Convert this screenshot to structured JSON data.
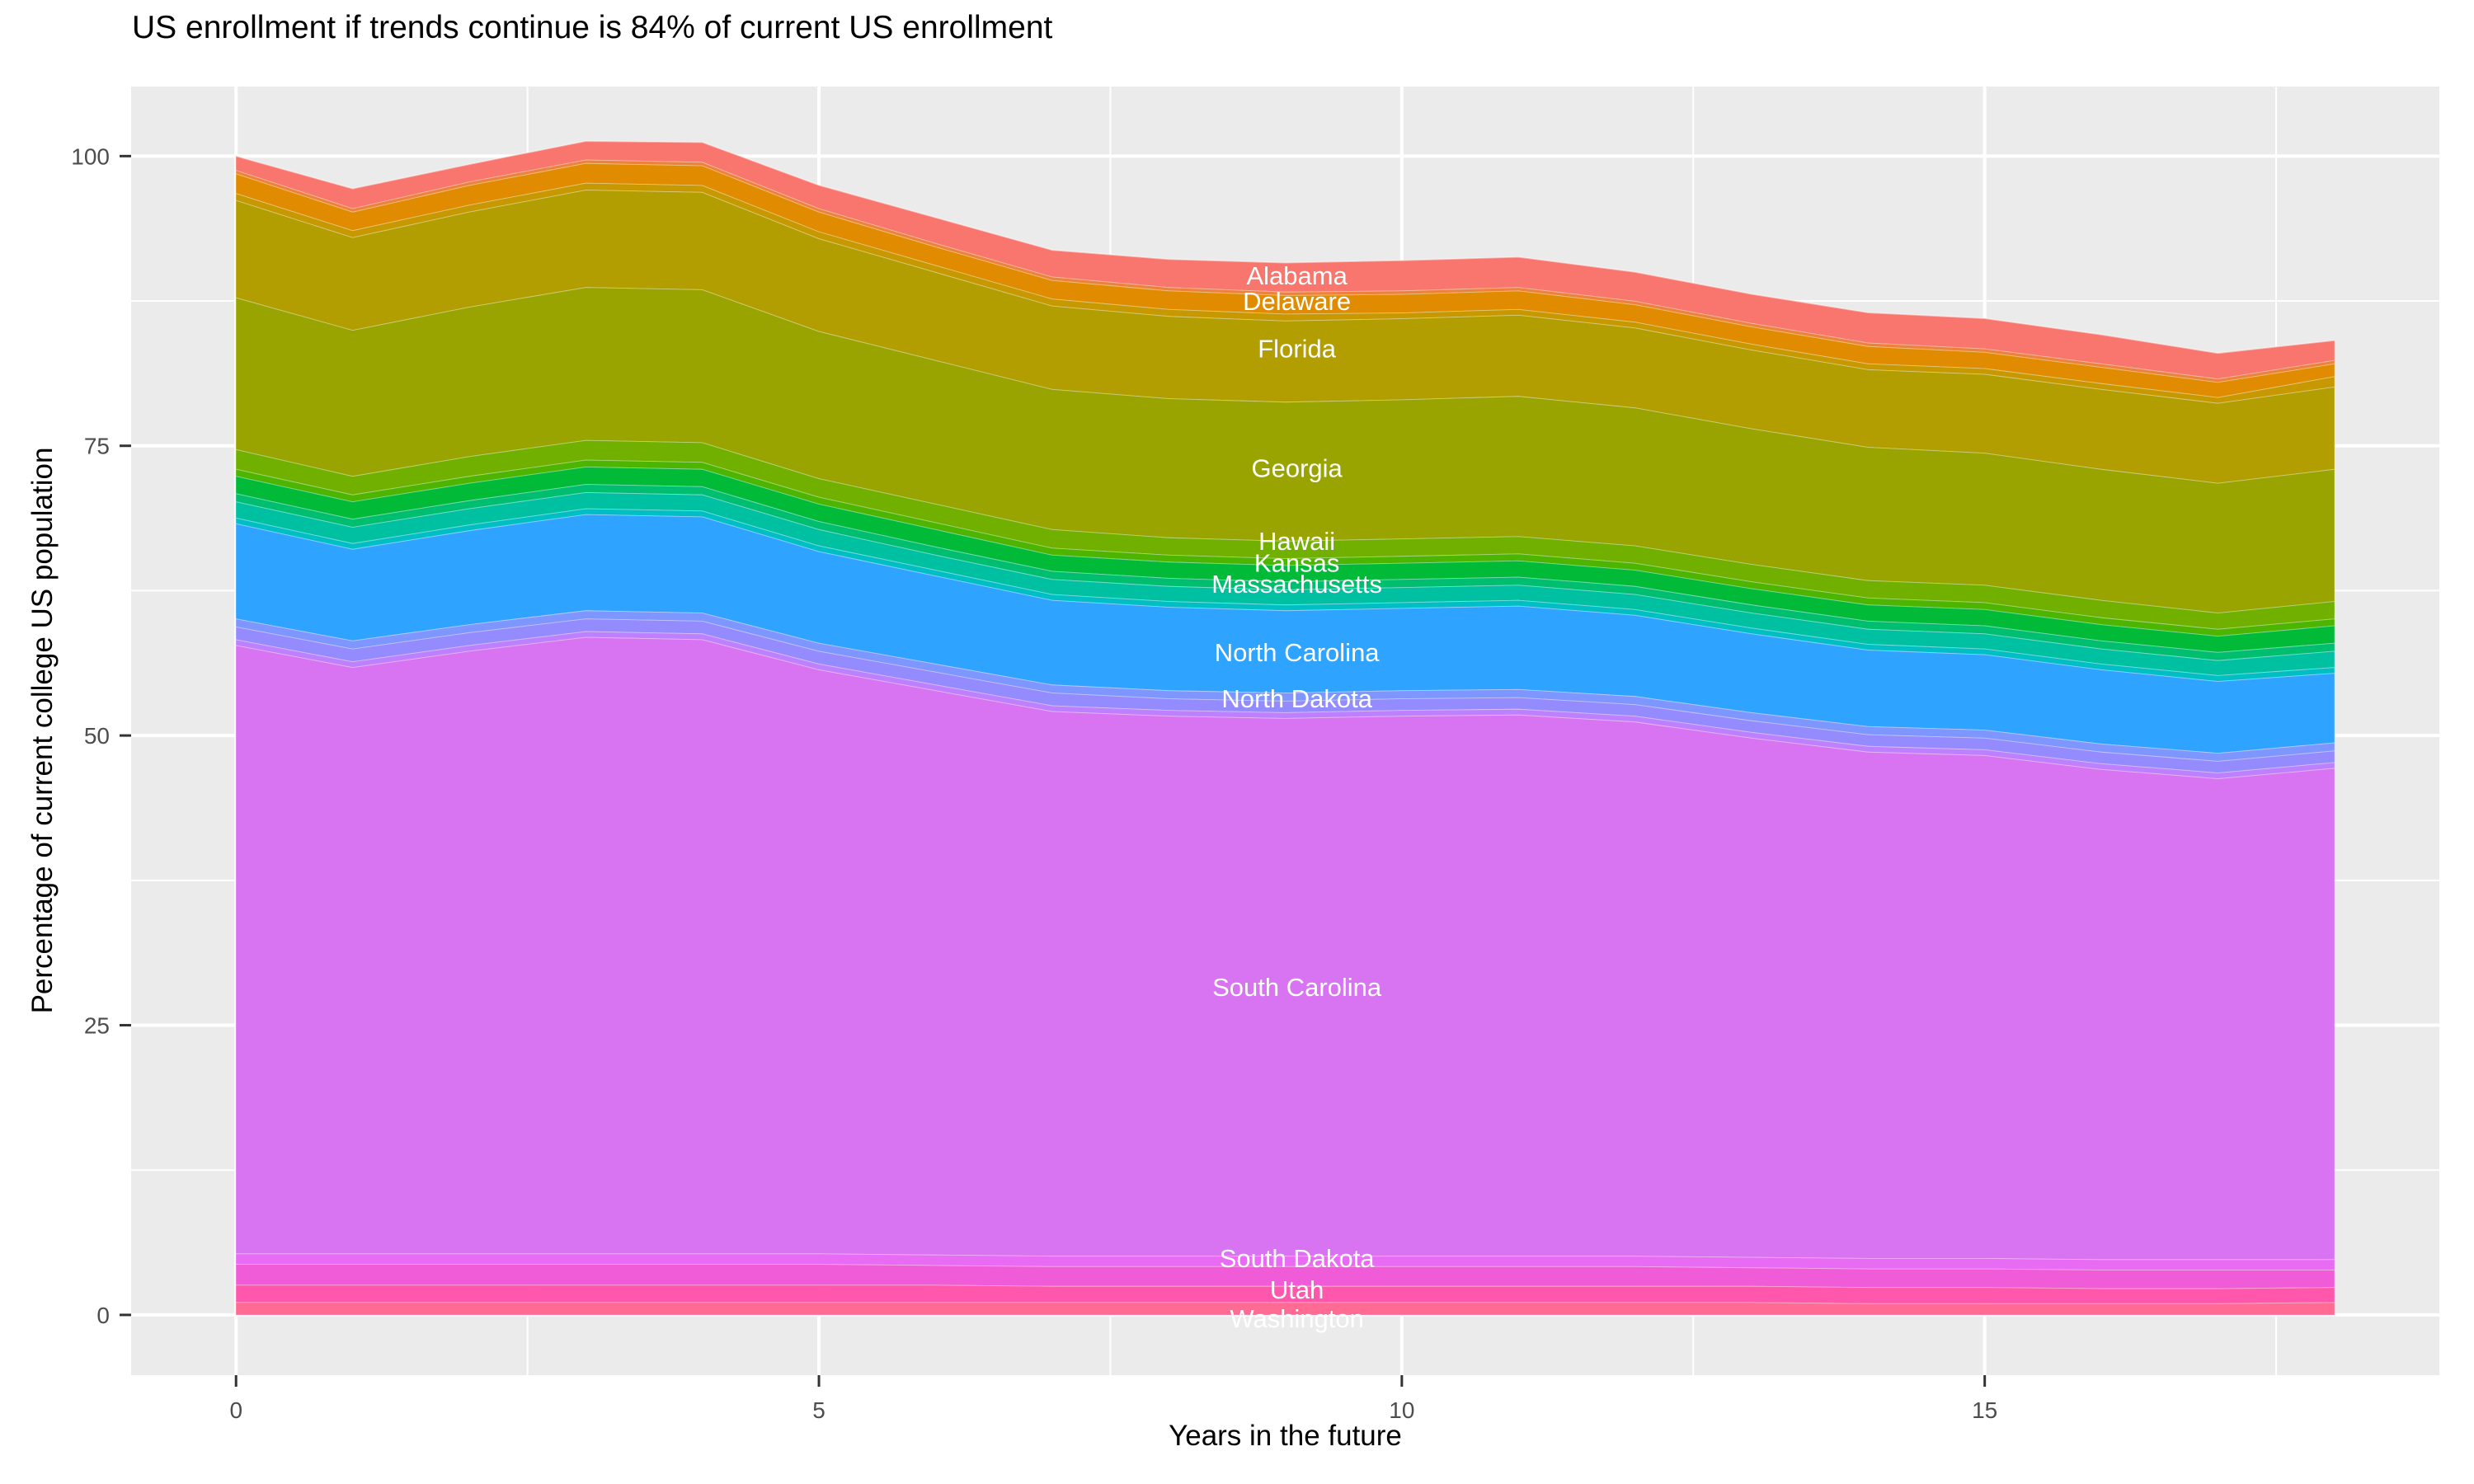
{
  "colors": {
    "panel_bg": "#EBEBEB",
    "grid": "#FFFFFF",
    "tick_text": "#4D4D4D",
    "tick_mark": "#333333",
    "axis_text": "#000000",
    "area_label_text": "#FFFFFF"
  },
  "chart_data": {
    "type": "area",
    "stacked": true,
    "title": "US enrollment if trends continue is 84% of current US enrollment",
    "xlabel": "Years in the future",
    "ylabel": "Percentage of current college US population",
    "x": [
      0,
      1,
      2,
      3,
      4,
      5,
      6,
      7,
      8,
      9,
      10,
      11,
      12,
      13,
      14,
      15,
      16,
      17,
      18
    ],
    "x_ticks": [
      0,
      5,
      10,
      15
    ],
    "x_minor_ticks": [
      2.5,
      7.5,
      12.5,
      17.5
    ],
    "x_range": [
      -0.9,
      18.9
    ],
    "y_ticks": [
      0,
      25,
      50,
      75,
      100
    ],
    "y_minor_ticks": [
      12.5,
      37.5,
      62.5,
      87.5
    ],
    "y_range": [
      -5.2,
      106.0
    ],
    "grid": true,
    "legend_position": "none",
    "label_x_year": 9.1,
    "total_start_pct": 100,
    "total_end_pct": 84,
    "stack_order": "bottom-to-top",
    "series": [
      {
        "name": "unlabeled-states-bottom",
        "color": "#FF6B94",
        "values": [
          1.1,
          1.1,
          1.1,
          1.1,
          1.1,
          1.1,
          1.1,
          1.1,
          1.1,
          1.1,
          1.1,
          1.1,
          1.1,
          1.1,
          1.0,
          1.0,
          1.0,
          1.0,
          1.1
        ]
      },
      {
        "name": "washington",
        "label_text": "Washington",
        "label_y": -0.3,
        "color": "#FF57AC",
        "values": [
          1.5,
          1.5,
          1.5,
          1.5,
          1.5,
          1.5,
          1.5,
          1.4,
          1.4,
          1.4,
          1.4,
          1.4,
          1.4,
          1.4,
          1.4,
          1.4,
          1.3,
          1.3,
          1.3
        ]
      },
      {
        "name": "utah",
        "label_text": "Utah",
        "label_y": 2.2,
        "color": "#F05CD8",
        "values": [
          1.8,
          1.8,
          1.8,
          1.8,
          1.8,
          1.8,
          1.7,
          1.7,
          1.7,
          1.7,
          1.7,
          1.7,
          1.7,
          1.6,
          1.6,
          1.6,
          1.6,
          1.6,
          1.5
        ]
      },
      {
        "name": "south-dakota",
        "label_text": "South Dakota",
        "label_y": 4.9,
        "color": "#E76BF3",
        "values": [
          0.9,
          0.9,
          0.9,
          0.9,
          0.9,
          0.9,
          0.9,
          0.9,
          0.9,
          0.9,
          0.9,
          0.9,
          0.9,
          0.9,
          0.9,
          0.9,
          0.9,
          0.9,
          0.9
        ]
      },
      {
        "name": "south-carolina",
        "label_text": "South Carolina",
        "label_y": 28.3,
        "color": "#D873F2",
        "values": [
          52.5,
          50.6,
          52.0,
          53.2,
          53.0,
          50.4,
          48.7,
          47.0,
          46.6,
          46.4,
          46.6,
          46.7,
          46.1,
          44.8,
          43.7,
          43.4,
          42.3,
          41.5,
          42.4
        ]
      },
      {
        "name": "unlabeled-states-violet",
        "color": "#BD80FF",
        "values": [
          0.5,
          0.5,
          0.5,
          0.5,
          0.5,
          0.5,
          0.5,
          0.5,
          0.5,
          0.5,
          0.5,
          0.5,
          0.5,
          0.5,
          0.5,
          0.5,
          0.5,
          0.5,
          0.5
        ]
      },
      {
        "name": "north-dakota",
        "label_text": "North Dakota",
        "label_y": 53.2,
        "color": "#948BFF",
        "values": [
          1.1,
          1.1,
          1.1,
          1.1,
          1.1,
          1.1,
          1.1,
          1.1,
          1.0,
          1.0,
          1.0,
          1.0,
          1.0,
          1.0,
          1.0,
          1.0,
          1.0,
          1.0,
          1.0
        ]
      },
      {
        "name": "unlabeled-states-slate-blue",
        "color": "#7E96FF",
        "values": [
          0.7,
          0.7,
          0.7,
          0.7,
          0.7,
          0.7,
          0.7,
          0.7,
          0.7,
          0.7,
          0.7,
          0.7,
          0.7,
          0.7,
          0.7,
          0.7,
          0.7,
          0.7,
          0.7
        ]
      },
      {
        "name": "north-carolina",
        "label_text": "North Carolina",
        "label_y": 57.2,
        "color": "#2EA3FF",
        "values": [
          8.2,
          7.9,
          8.1,
          8.3,
          8.3,
          7.9,
          7.6,
          7.3,
          7.2,
          7.1,
          7.1,
          7.2,
          7.0,
          6.8,
          6.6,
          6.5,
          6.4,
          6.2,
          6.0
        ]
      },
      {
        "name": "unlabeled-states-cyan",
        "color": "#00BFC4",
        "values": [
          0.5,
          0.5,
          0.5,
          0.5,
          0.5,
          0.5,
          0.5,
          0.5,
          0.5,
          0.5,
          0.5,
          0.5,
          0.5,
          0.5,
          0.5,
          0.5,
          0.5,
          0.5,
          0.5
        ]
      },
      {
        "name": "massachusetts",
        "label_text": "Massachusetts",
        "label_y": 63.1,
        "color": "#00C0A2",
        "values": [
          1.4,
          1.4,
          1.4,
          1.4,
          1.4,
          1.4,
          1.3,
          1.3,
          1.3,
          1.3,
          1.3,
          1.3,
          1.3,
          1.3,
          1.3,
          1.3,
          1.3,
          1.3,
          1.4
        ]
      },
      {
        "name": "unlabeled-states-emerald",
        "color": "#00BE70",
        "values": [
          0.7,
          0.7,
          0.7,
          0.7,
          0.7,
          0.7,
          0.7,
          0.7,
          0.7,
          0.7,
          0.7,
          0.7,
          0.7,
          0.7,
          0.7,
          0.7,
          0.7,
          0.7,
          0.7
        ]
      },
      {
        "name": "kansas",
        "label_text": "Kansas",
        "label_y": 64.9,
        "color": "#00BA38",
        "values": [
          1.5,
          1.5,
          1.5,
          1.5,
          1.5,
          1.5,
          1.5,
          1.4,
          1.4,
          1.4,
          1.4,
          1.4,
          1.4,
          1.4,
          1.4,
          1.4,
          1.4,
          1.4,
          1.5
        ]
      },
      {
        "name": "unlabeled-states-chartreuse",
        "color": "#4DB400",
        "values": [
          0.6,
          0.6,
          0.6,
          0.6,
          0.6,
          0.6,
          0.6,
          0.6,
          0.6,
          0.6,
          0.6,
          0.6,
          0.6,
          0.6,
          0.6,
          0.6,
          0.6,
          0.6,
          0.6
        ]
      },
      {
        "name": "hawaii",
        "label_text": "Hawaii",
        "label_y": 66.8,
        "color": "#72B000",
        "values": [
          1.7,
          1.6,
          1.7,
          1.7,
          1.7,
          1.6,
          1.6,
          1.6,
          1.5,
          1.5,
          1.5,
          1.5,
          1.5,
          1.5,
          1.5,
          1.5,
          1.5,
          1.4,
          1.5
        ]
      },
      {
        "name": "georgia",
        "label_text": "Georgia",
        "label_y": 73.1,
        "color": "#9AA400",
        "values": [
          13.1,
          12.6,
          12.9,
          13.2,
          13.2,
          12.7,
          12.4,
          12.1,
          12.0,
          12.0,
          12.0,
          12.1,
          11.9,
          11.7,
          11.5,
          11.4,
          11.3,
          11.2,
          11.4
        ]
      },
      {
        "name": "florida",
        "label_text": "Florida",
        "label_y": 83.4,
        "color": "#B29E00",
        "values": [
          8.4,
          8.0,
          8.2,
          8.4,
          8.4,
          8.0,
          7.6,
          7.2,
          7.1,
          7.0,
          7.0,
          7.0,
          6.9,
          6.8,
          6.7,
          6.8,
          6.9,
          6.9,
          7.1
        ]
      },
      {
        "name": "unlabeled-states-amber",
        "color": "#C79800",
        "values": [
          0.6,
          0.6,
          0.6,
          0.6,
          0.6,
          0.6,
          0.6,
          0.6,
          0.6,
          0.6,
          0.5,
          0.5,
          0.5,
          0.5,
          0.5,
          0.5,
          0.5,
          0.5,
          0.9
        ]
      },
      {
        "name": "delaware",
        "label_text": "Delaware",
        "label_y": 87.5,
        "color": "#E08B00",
        "values": [
          1.7,
          1.6,
          1.7,
          1.7,
          1.7,
          1.7,
          1.6,
          1.6,
          1.6,
          1.6,
          1.6,
          1.6,
          1.5,
          1.5,
          1.5,
          1.4,
          1.4,
          1.3,
          1.1
        ]
      },
      {
        "name": "unlabeled-states-orange-red",
        "color": "#ED813E",
        "values": [
          0.3,
          0.3,
          0.3,
          0.3,
          0.3,
          0.3,
          0.3,
          0.3,
          0.3,
          0.3,
          0.3,
          0.3,
          0.3,
          0.3,
          0.3,
          0.3,
          0.3,
          0.3,
          0.3
        ]
      },
      {
        "name": "alabama",
        "label_text": "Alabama",
        "label_y": 89.7,
        "color": "#F8766D",
        "values": [
          1.2,
          1.7,
          1.5,
          1.6,
          1.7,
          2.0,
          2.2,
          2.3,
          2.4,
          2.5,
          2.6,
          2.6,
          2.5,
          2.5,
          2.6,
          2.6,
          2.5,
          2.2,
          1.7
        ]
      }
    ]
  }
}
